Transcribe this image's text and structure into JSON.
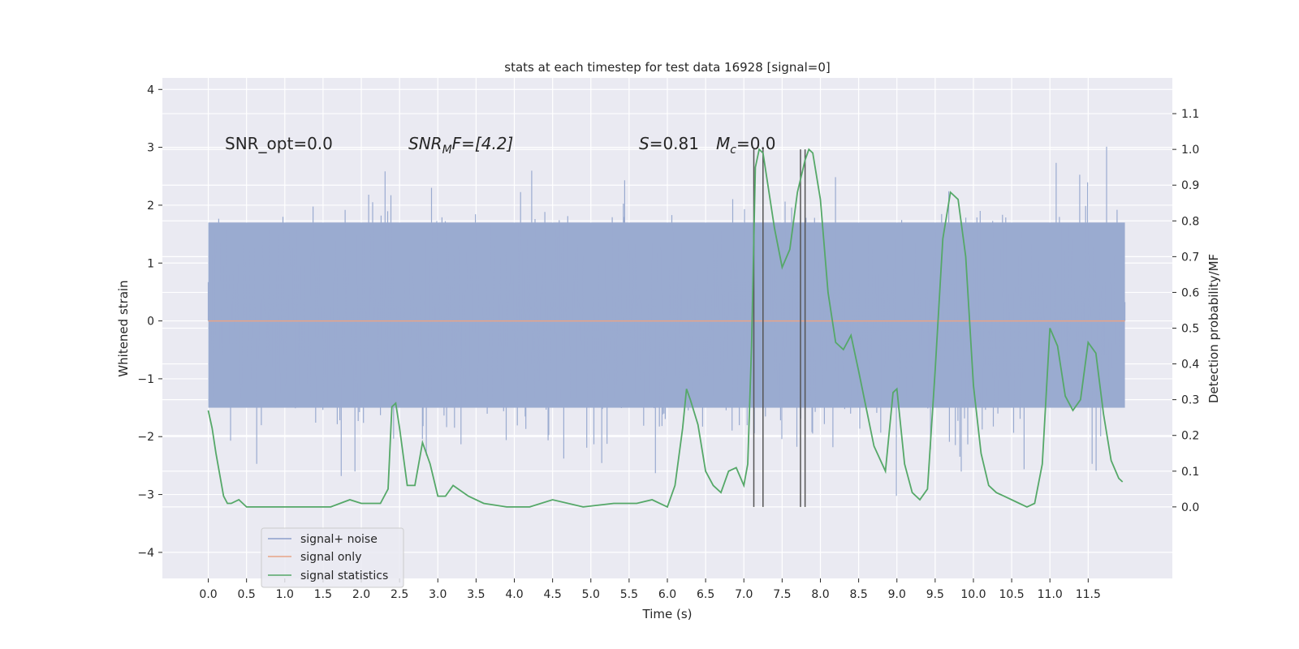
{
  "chart_data": {
    "type": "line",
    "title": "stats at each timestep for test data 16928 [signal=0]",
    "xlabel": "Time (s)",
    "ylabel": "Whitened strain",
    "ylabel_right": "Detection probability/MF",
    "xlim": [
      -0.6,
      12.6
    ],
    "ylim": [
      -4.45,
      4.2
    ],
    "ylim_right": [
      -0.2,
      1.2
    ],
    "x_ticks": [
      "0.0",
      "0.5",
      "1.0",
      "1.5",
      "2.0",
      "2.5",
      "3.0",
      "3.5",
      "4.0",
      "4.5",
      "5.0",
      "5.5",
      "6.0",
      "6.5",
      "7.0",
      "7.5",
      "8.0",
      "8.5",
      "9.0",
      "9.5",
      "10.0",
      "10.5",
      "11.0",
      "11.5"
    ],
    "y_ticks": [
      "4",
      "3",
      "2",
      "1",
      "0",
      "−1",
      "−2",
      "−3",
      "−4"
    ],
    "y_ticks_right": [
      "1.1",
      "1.0",
      "0.9",
      "0.8",
      "0.7",
      "0.6",
      "0.5",
      "0.4",
      "0.3",
      "0.2",
      "0.1",
      "0.0"
    ],
    "grid": true,
    "legend_position": "lower-left",
    "legend": [
      {
        "label": "signal+ noise",
        "color": "#8da0cb"
      },
      {
        "label": "signal only",
        "color": "#e8a488"
      },
      {
        "label": "signal statistics",
        "color": "#55a868"
      }
    ],
    "annotations": {
      "snr_opt": "SNR_opt=0.0",
      "snr_mf_sym": "SNR",
      "snr_mf_sub": "M",
      "snr_mf_rest": "F=[4.2]",
      "s_sym": "S",
      "s_val": "=0.81",
      "mc_sym": "M",
      "mc_sub": "c",
      "mc_val": "=0.0"
    },
    "noise_series": {
      "name": "signal+ noise",
      "x_range": [
        0.0,
        11.98
      ],
      "envelope_1sigma": [
        -1.5,
        1.7
      ],
      "peak_extrema": [
        -4.1,
        3.7
      ]
    },
    "signal_only": {
      "name": "signal only",
      "value": 0.0
    },
    "statistics_series": {
      "name": "signal statistics",
      "x": [
        0.0,
        0.05,
        0.1,
        0.2,
        0.25,
        0.3,
        0.4,
        0.5,
        0.7,
        1.0,
        1.3,
        1.6,
        1.85,
        2.0,
        2.25,
        2.35,
        2.4,
        2.45,
        2.5,
        2.6,
        2.7,
        2.8,
        2.9,
        3.0,
        3.1,
        3.2,
        3.4,
        3.6,
        3.9,
        4.2,
        4.5,
        4.9,
        5.3,
        5.6,
        5.8,
        6.0,
        6.1,
        6.2,
        6.25,
        6.3,
        6.4,
        6.5,
        6.6,
        6.7,
        6.8,
        6.9,
        7.0,
        7.05,
        7.1,
        7.15,
        7.2,
        7.25,
        7.3,
        7.4,
        7.5,
        7.6,
        7.7,
        7.8,
        7.85,
        7.9,
        8.0,
        8.1,
        8.2,
        8.3,
        8.4,
        8.5,
        8.7,
        8.85,
        8.95,
        9.0,
        9.1,
        9.2,
        9.3,
        9.4,
        9.5,
        9.6,
        9.7,
        9.8,
        9.9,
        10.0,
        10.1,
        10.2,
        10.3,
        10.4,
        10.6,
        10.7,
        10.8,
        10.9,
        11.0,
        11.1,
        11.2,
        11.3,
        11.4,
        11.5,
        11.6,
        11.7,
        11.8,
        11.9,
        11.95
      ],
      "y": [
        0.27,
        0.22,
        0.15,
        0.03,
        0.01,
        0.01,
        0.02,
        0.0,
        0.0,
        0.0,
        0.0,
        0.0,
        0.02,
        0.01,
        0.01,
        0.05,
        0.28,
        0.29,
        0.22,
        0.06,
        0.06,
        0.18,
        0.12,
        0.03,
        0.03,
        0.06,
        0.03,
        0.01,
        0.0,
        0.0,
        0.02,
        0.0,
        0.01,
        0.01,
        0.02,
        0.0,
        0.06,
        0.22,
        0.33,
        0.3,
        0.23,
        0.1,
        0.06,
        0.04,
        0.1,
        0.11,
        0.06,
        0.12,
        0.45,
        0.95,
        1.0,
        0.99,
        0.92,
        0.78,
        0.67,
        0.72,
        0.88,
        0.97,
        1.0,
        0.99,
        0.86,
        0.6,
        0.46,
        0.44,
        0.48,
        0.38,
        0.17,
        0.1,
        0.32,
        0.33,
        0.12,
        0.04,
        0.02,
        0.05,
        0.38,
        0.75,
        0.88,
        0.86,
        0.7,
        0.34,
        0.15,
        0.06,
        0.04,
        0.03,
        0.01,
        0.0,
        0.01,
        0.12,
        0.5,
        0.45,
        0.31,
        0.27,
        0.3,
        0.46,
        0.43,
        0.26,
        0.13,
        0.08,
        0.07
      ]
    },
    "marker_lines_x": [
      7.13,
      7.25,
      7.74,
      7.8
    ]
  }
}
